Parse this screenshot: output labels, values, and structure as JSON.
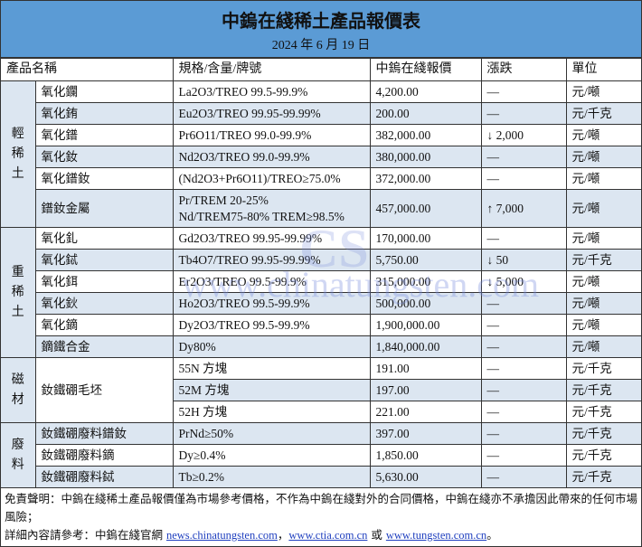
{
  "title": "中鎢在綫稀土產品報價表",
  "date": "2024 年 6 月 19 日",
  "headers": [
    "產品名稱",
    "規格/含量/牌號",
    "中鎢在綫報價",
    "漲跌",
    "單位"
  ],
  "groups": {
    "light": "輕稀土",
    "heavy": "重稀土",
    "magnet": "磁材",
    "scrap": "廢料"
  },
  "rows": [
    {
      "name": "氧化鑭",
      "spec": "La2O3/TREO 99.5-99.9%",
      "price": "4,200.00",
      "change": "—",
      "unit": "元/噸"
    },
    {
      "name": "氧化銪",
      "spec": "Eu2O3/TREO 99.95-99.99%",
      "price": "200.00",
      "change": "—",
      "unit": "元/千克"
    },
    {
      "name": "氧化鐠",
      "spec": "Pr6O11/TREO 99.0-99.9%",
      "price": "382,000.00",
      "change": "↓ 2,000",
      "unit": "元/噸"
    },
    {
      "name": "氧化釹",
      "spec": "Nd2O3/TREO 99.0-99.9%",
      "price": "380,000.00",
      "change": "—",
      "unit": "元/噸"
    },
    {
      "name": "氧化鐠釹",
      "spec": "(Nd2O3+Pr6O11)/TREO≥75.0%",
      "price": "372,000.00",
      "change": "—",
      "unit": "元/噸"
    },
    {
      "name": "鐠釹金屬",
      "spec": "Pr/TREM 20-25%",
      "spec2": "Nd/TREM75-80% TREM≥98.5%",
      "price": "457,000.00",
      "change": "↑ 7,000",
      "unit": "元/噸"
    },
    {
      "name": "氧化釓",
      "spec": "Gd2O3/TREO 99.95-99.99%",
      "price": "170,000.00",
      "change": "—",
      "unit": "元/噸"
    },
    {
      "name": "氧化鋱",
      "spec": "Tb4O7/TREO 99.95-99.99%",
      "price": "5,750.00",
      "change": "↓ 50",
      "unit": "元/千克"
    },
    {
      "name": "氧化鉺",
      "spec": "Er2O3/TREO 99.5-99.9%",
      "price": "315,000.00",
      "change": "↓ 5,000",
      "unit": "元/噸"
    },
    {
      "name": "氧化鈥",
      "spec": "Ho2O3/TREO 99.5-99.9%",
      "price": "500,000.00",
      "change": "—",
      "unit": "元/噸"
    },
    {
      "name": "氧化鏑",
      "spec": "Dy2O3/TREO 99.5-99.9%",
      "price": "1,900,000.00",
      "change": "—",
      "unit": "元/噸"
    },
    {
      "name": "鏑鐵合金",
      "spec": "Dy80%",
      "price": "1,840,000.00",
      "change": "—",
      "unit": "元/噸"
    },
    {
      "name": "釹鐵硼毛坯",
      "spec": "55N 方塊",
      "price": "191.00",
      "change": "—",
      "unit": "元/千克"
    },
    {
      "spec": "52M 方塊",
      "price": "197.00",
      "change": "—",
      "unit": "元/千克"
    },
    {
      "spec": "52H 方塊",
      "price": "221.00",
      "change": "—",
      "unit": "元/千克"
    },
    {
      "name": "釹鐵硼廢料鐠釹",
      "spec": "PrNd≥50%",
      "price": "397.00",
      "change": "—",
      "unit": "元/千克"
    },
    {
      "name": "釹鐵硼廢料鏑",
      "spec": "Dy≥0.4%",
      "price": "1,850.00",
      "change": "—",
      "unit": "元/千克"
    },
    {
      "name": "釹鐵硼廢料鋱",
      "spec": "Tb≥0.2%",
      "price": "5,630.00",
      "change": "—",
      "unit": "元/千克"
    }
  ],
  "footer": {
    "disclaimer": "免責聲明：中鎢在綫稀土產品報價僅為市場參考價格，不作為中鎢在綫對外的合同價格，中鎢在綫亦不承擔因此帶來的任何市場風險；",
    "details_prefix": "詳細內容請參考：中鎢在綫官網 ",
    "link1": "news.chinatungsten.com",
    "sep1": "，",
    "link2": "www.ctia.com.cn",
    "sep2": " 或 ",
    "link3": "www.tungsten.com.cn",
    "end": "。"
  },
  "watermark": "www.chinatungsten.com",
  "colors": {
    "header": "#5b9bd5",
    "alt_row": "#dce6f1",
    "link": "#1f3fbf"
  }
}
